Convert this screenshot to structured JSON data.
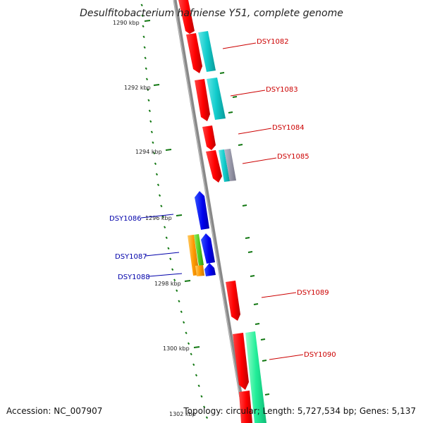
{
  "title": "Desulfitobacterium hafniense Y51, complete genome",
  "accession": "Accession: NC_007907",
  "summary": "Topology: circular; Length: 5,727,534 bp; Genes: 5,137",
  "ticks": [
    {
      "label": "1290 kbp"
    },
    {
      "label": "1292 kbp"
    },
    {
      "label": "1294 kbp"
    },
    {
      "label": "1296 kbp"
    },
    {
      "label": "1298 kbp"
    },
    {
      "label": "1300 kbp"
    },
    {
      "label": "1302 kbp"
    }
  ],
  "genes": [
    {
      "name": "DSY1082",
      "strand": "forward",
      "color": "#dd0000"
    },
    {
      "name": "DSY1083",
      "strand": "forward",
      "color": "#dd0000"
    },
    {
      "name": "DSY1084",
      "strand": "forward",
      "color": "#dd0000"
    },
    {
      "name": "DSY1085",
      "strand": "forward",
      "color": "#dd0000"
    },
    {
      "name": "DSY1086",
      "strand": "reverse",
      "color": "#0000cc"
    },
    {
      "name": "DSY1087",
      "strand": "reverse",
      "color": "#0000cc"
    },
    {
      "name": "DSY1088",
      "strand": "reverse",
      "color": "#0000cc"
    },
    {
      "name": "DSY1089",
      "strand": "forward",
      "color": "#dd0000"
    },
    {
      "name": "DSY1090",
      "strand": "forward",
      "color": "#dd0000"
    }
  ],
  "colors": {
    "forward_gene": "#ff0000",
    "reverse_gene": "#0000ee",
    "forward_label": "#cc0000",
    "reverse_label": "#0000aa",
    "backbone": "#888888",
    "tick": "#117711",
    "feature_cyan": "#11cccc",
    "feature_green": "#22ee99",
    "feature_orange": "#ff9900",
    "feature_lime": "#55cc22"
  }
}
